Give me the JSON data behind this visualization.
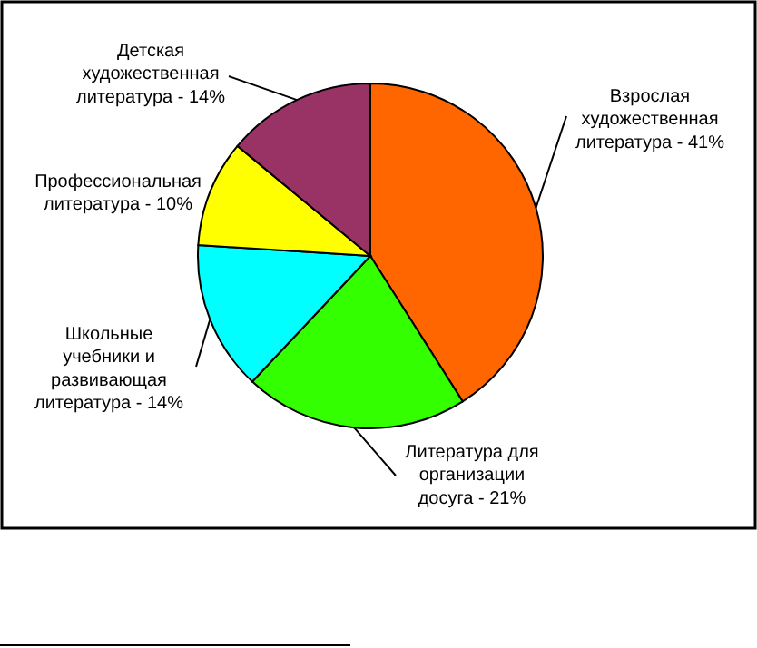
{
  "chart_data": {
    "type": "pie",
    "categories": [
      "Взрослая художественная литература",
      "Литература для организации досуга",
      "Школьные учебники и развивающая литература",
      "Профессиональная литература",
      "Детская художественная литература"
    ],
    "values": [
      41,
      21,
      14,
      10,
      14
    ],
    "value_labels": [
      "41%",
      "21%",
      "14%",
      "10%",
      "14%"
    ],
    "colors": [
      "#ff6600",
      "#33ff00",
      "#00ffff",
      "#ffff00",
      "#993366"
    ]
  }
}
